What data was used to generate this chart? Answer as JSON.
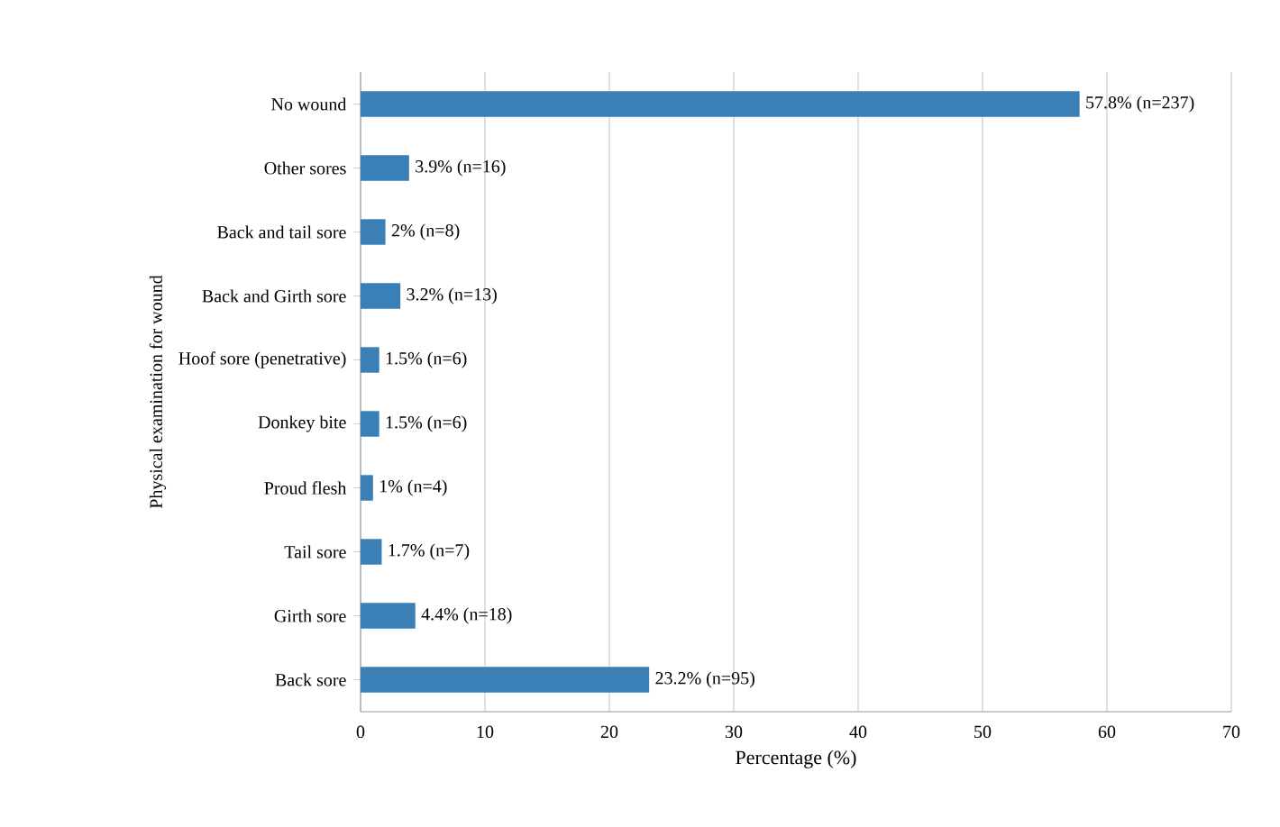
{
  "chart_data": {
    "type": "bar",
    "orientation": "horizontal",
    "xlabel": "Percentage (%)",
    "ylabel": "Physical examination for wound",
    "categories": [
      "No wound",
      "Other sores",
      "Back and tail sore",
      "Back and Girth sore",
      "Hoof sore (penetrative)",
      "Donkey bite",
      "Proud flesh",
      "Tail sore",
      "Girth sore",
      "Back sore"
    ],
    "values": [
      57.8,
      3.9,
      2,
      3.2,
      1.5,
      1.5,
      1,
      1.7,
      4.4,
      23.2
    ],
    "value_labels": [
      "57.8% (n=237)",
      "3.9% (n=16)",
      "2% (n=8)",
      "3.2% (n=13)",
      "1.5% (n=6)",
      "1.5% (n=6)",
      "1% (n=4)",
      "1.7% (n=7)",
      "4.4% (n=18)",
      "23.2% (n=95)"
    ],
    "color": "#3a7fb5",
    "xlim": [
      0,
      70
    ],
    "xticks": [
      0,
      10,
      20,
      30,
      40,
      50,
      60,
      70
    ],
    "grid": "x"
  }
}
